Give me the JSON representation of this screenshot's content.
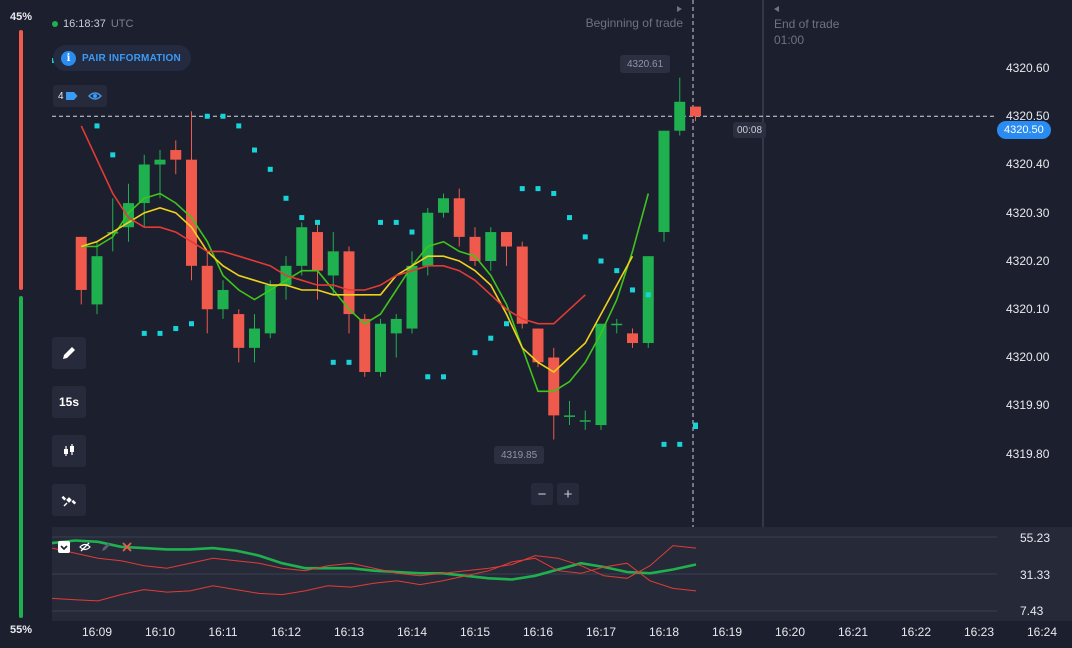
{
  "sentiment": {
    "top_percent": "45%",
    "bottom_percent": "55%",
    "top_color": "#ef5a4c",
    "bottom_color": "#1fb04f"
  },
  "clock": {
    "time": "16:18:37",
    "timezone": "UTC"
  },
  "pair_info": {
    "label": "PAIR INFORMATION",
    "icon": "info-icon"
  },
  "indicators": {
    "count": "4",
    "icon": "eye-icon"
  },
  "tools": [
    {
      "name": "draw-tool-button",
      "label": "",
      "icon": "pencil-icon"
    },
    {
      "name": "timeframe-button",
      "label": "15s",
      "icon": ""
    },
    {
      "name": "chart-type-button",
      "label": "",
      "icon": "candlestick-icon"
    },
    {
      "name": "indicators-button",
      "label": "",
      "icon": "satellite-icon"
    }
  ],
  "trade": {
    "beginning_label": "Beginning of trade",
    "end_label": "End of trade",
    "end_time": "01:00"
  },
  "price_tags": {
    "high": "4320.61",
    "low": "4319.85",
    "timer": "00:08",
    "current": "4320.50"
  },
  "y_axis": {
    "ticks": [
      "4320.60",
      "4320.50",
      "4320.40",
      "4320.30",
      "4320.20",
      "4320.10",
      "4320.00",
      "4319.90",
      "4319.80"
    ]
  },
  "oscillator_axis": {
    "ticks": [
      "55.23",
      "31.33",
      "7.43"
    ]
  },
  "x_axis": {
    "ticks": [
      "16:09",
      "16:10",
      "16:11",
      "16:12",
      "16:13",
      "16:14",
      "16:15",
      "16:16",
      "16:17",
      "16:18",
      "16:19",
      "16:20",
      "16:21",
      "16:22",
      "16:23",
      "16:24"
    ]
  },
  "zoom": {
    "minus": "−",
    "plus": "+"
  },
  "colors": {
    "background": "#1c1f2d",
    "up": "#1fb04f",
    "down": "#ef5a4c",
    "accent": "#2a8cf0",
    "ma_fast": "#3fc41d",
    "ma_mid": "#f0d21a",
    "ma_slow": "#e23b35",
    "parabolic_sar": "#17d4d6"
  },
  "chart_data": {
    "type": "candlestick",
    "y_range": [
      4319.74,
      4320.66
    ],
    "candles": [
      {
        "t": "16:08:45",
        "o": 4320.25,
        "c": 4320.14,
        "h": 4320.25,
        "l": 4320.11
      },
      {
        "t": "16:09:00",
        "o": 4320.11,
        "c": 4320.21,
        "h": 4320.24,
        "l": 4320.09
      },
      {
        "t": "16:09:15",
        "o": 4320.26,
        "c": 4320.26,
        "h": 4320.33,
        "l": 4320.22
      },
      {
        "t": "16:09:30",
        "o": 4320.27,
        "c": 4320.32,
        "h": 4320.36,
        "l": 4320.24
      },
      {
        "t": "16:09:45",
        "o": 4320.32,
        "c": 4320.4,
        "h": 4320.42,
        "l": 4320.27
      },
      {
        "t": "16:10:00",
        "o": 4320.4,
        "c": 4320.41,
        "h": 4320.43,
        "l": 4320.33
      },
      {
        "t": "16:10:15",
        "o": 4320.43,
        "c": 4320.41,
        "h": 4320.45,
        "l": 4320.38
      },
      {
        "t": "16:10:30",
        "o": 4320.41,
        "c": 4320.19,
        "h": 4320.51,
        "l": 4320.16
      },
      {
        "t": "16:10:45",
        "o": 4320.19,
        "c": 4320.1,
        "h": 4320.22,
        "l": 4320.05
      },
      {
        "t": "16:11:00",
        "o": 4320.1,
        "c": 4320.14,
        "h": 4320.16,
        "l": 4320.08
      },
      {
        "t": "16:11:15",
        "o": 4320.09,
        "c": 4320.02,
        "h": 4320.1,
        "l": 4319.99
      },
      {
        "t": "16:11:30",
        "o": 4320.02,
        "c": 4320.06,
        "h": 4320.09,
        "l": 4319.99
      },
      {
        "t": "16:11:45",
        "o": 4320.05,
        "c": 4320.15,
        "h": 4320.16,
        "l": 4320.04
      },
      {
        "t": "16:12:00",
        "o": 4320.15,
        "c": 4320.19,
        "h": 4320.21,
        "l": 4320.12
      },
      {
        "t": "16:12:15",
        "o": 4320.19,
        "c": 4320.27,
        "h": 4320.28,
        "l": 4320.17
      },
      {
        "t": "16:12:30",
        "o": 4320.26,
        "c": 4320.18,
        "h": 4320.28,
        "l": 4320.12
      },
      {
        "t": "16:12:45",
        "o": 4320.17,
        "c": 4320.22,
        "h": 4320.26,
        "l": 4320.13
      },
      {
        "t": "16:13:00",
        "o": 4320.22,
        "c": 4320.09,
        "h": 4320.23,
        "l": 4320.05
      },
      {
        "t": "16:13:15",
        "o": 4320.08,
        "c": 4319.97,
        "h": 4320.09,
        "l": 4319.96
      },
      {
        "t": "16:13:30",
        "o": 4319.97,
        "c": 4320.07,
        "h": 4320.08,
        "l": 4319.96
      },
      {
        "t": "16:13:45",
        "o": 4320.05,
        "c": 4320.08,
        "h": 4320.09,
        "l": 4320.0
      },
      {
        "t": "16:14:00",
        "o": 4320.06,
        "c": 4320.19,
        "h": 4320.22,
        "l": 4320.05
      },
      {
        "t": "16:14:15",
        "o": 4320.19,
        "c": 4320.3,
        "h": 4320.31,
        "l": 4320.17
      },
      {
        "t": "16:14:30",
        "o": 4320.3,
        "c": 4320.33,
        "h": 4320.34,
        "l": 4320.29
      },
      {
        "t": "16:14:45",
        "o": 4320.33,
        "c": 4320.25,
        "h": 4320.35,
        "l": 4320.23
      },
      {
        "t": "16:15:00",
        "o": 4320.25,
        "c": 4320.2,
        "h": 4320.27,
        "l": 4320.19
      },
      {
        "t": "16:15:15",
        "o": 4320.2,
        "c": 4320.26,
        "h": 4320.27,
        "l": 4320.18
      },
      {
        "t": "16:15:30",
        "o": 4320.26,
        "c": 4320.23,
        "h": 4320.26,
        "l": 4320.19
      },
      {
        "t": "16:15:45",
        "o": 4320.23,
        "c": 4320.07,
        "h": 4320.24,
        "l": 4320.06
      },
      {
        "t": "16:16:00",
        "o": 4320.06,
        "c": 4319.99,
        "h": 4320.06,
        "l": 4319.98
      },
      {
        "t": "16:16:15",
        "o": 4320.0,
        "c": 4319.88,
        "h": 4320.02,
        "l": 4319.83
      },
      {
        "t": "16:16:30",
        "o": 4319.88,
        "c": 4319.88,
        "h": 4319.91,
        "l": 4319.86
      },
      {
        "t": "16:16:45",
        "o": 4319.87,
        "c": 4319.87,
        "h": 4319.89,
        "l": 4319.85
      },
      {
        "t": "16:17:00",
        "o": 4319.86,
        "c": 4320.07,
        "h": 4320.07,
        "l": 4319.85
      },
      {
        "t": "16:17:15",
        "o": 4320.07,
        "c": 4320.07,
        "h": 4320.08,
        "l": 4320.05
      },
      {
        "t": "16:17:30",
        "o": 4320.05,
        "c": 4320.03,
        "h": 4320.06,
        "l": 4320.02
      },
      {
        "t": "16:17:45",
        "o": 4320.03,
        "c": 4320.21,
        "h": 4320.21,
        "l": 4320.02
      },
      {
        "t": "16:18:00",
        "o": 4320.26,
        "c": 4320.47,
        "h": 4320.47,
        "l": 4320.24
      },
      {
        "t": "16:18:15",
        "o": 4320.47,
        "c": 4320.53,
        "h": 4320.58,
        "l": 4320.46
      },
      {
        "t": "16:18:30",
        "o": 4320.52,
        "c": 4320.5,
        "h": 4320.52,
        "l": 4320.49
      }
    ],
    "series": [
      {
        "name": "",
        "color": "#3fc41d",
        "values": [
          4320.23,
          4320.23,
          4320.25,
          4320.3,
          4320.33,
          4320.34,
          4320.32,
          4320.29,
          4320.24,
          4320.17,
          4320.14,
          4320.12,
          4320.14,
          4320.16,
          4320.18,
          4320.18,
          4320.14,
          4320.1,
          4320.07,
          4320.09,
          4320.14,
          4320.19,
          4320.23,
          4320.24,
          4320.22,
          4320.21,
          4320.17,
          4320.11,
          4320.02,
          4319.93,
          4319.93,
          4319.95,
          4319.99,
          4320.05,
          4320.12,
          4320.22,
          4320.34
        ]
      },
      {
        "name": "",
        "color": "#f0d21a",
        "values": [
          4320.23,
          4320.24,
          4320.26,
          4320.28,
          4320.3,
          4320.31,
          4320.3,
          4320.27,
          4320.22,
          4320.19,
          4320.17,
          4320.16,
          4320.15,
          4320.15,
          4320.14,
          4320.14,
          4320.13,
          4320.13,
          4320.13,
          4320.13,
          4320.17,
          4320.19,
          4320.21,
          4320.21,
          4320.2,
          4320.18,
          4320.15,
          4320.09,
          4320.02,
          4319.99,
          4319.97,
          4320.0,
          4320.03,
          4320.09,
          4320.15,
          4320.21
        ]
      },
      {
        "name": "",
        "color": "#e23b35",
        "values": [
          4320.48,
          4320.41,
          4320.34,
          4320.29,
          4320.27,
          4320.27,
          4320.26,
          4320.24,
          4320.22,
          4320.22,
          4320.21,
          4320.2,
          4320.19,
          4320.17,
          4320.16,
          4320.15,
          4320.15,
          4320.14,
          4320.14,
          4320.15,
          4320.17,
          4320.18,
          4320.19,
          4320.19,
          4320.18,
          4320.16,
          4320.13,
          4320.1,
          4320.08,
          4320.07,
          4320.07,
          4320.1,
          4320.13
        ]
      }
    ],
    "parabolic_sar": [
      {
        "t": "16:09:00",
        "v": 4320.48
      },
      {
        "t": "16:09:15",
        "v": 4320.42
      },
      {
        "t": "16:09:45",
        "v": 4320.05
      },
      {
        "t": "16:10:00",
        "v": 4320.05
      },
      {
        "t": "16:10:15",
        "v": 4320.06
      },
      {
        "t": "16:10:30",
        "v": 4320.07
      },
      {
        "t": "16:10:45",
        "v": 4320.5
      },
      {
        "t": "16:11:00",
        "v": 4320.5
      },
      {
        "t": "16:11:15",
        "v": 4320.48
      },
      {
        "t": "16:11:30",
        "v": 4320.43
      },
      {
        "t": "16:11:45",
        "v": 4320.39
      },
      {
        "t": "16:12:00",
        "v": 4320.33
      },
      {
        "t": "16:12:15",
        "v": 4320.29
      },
      {
        "t": "16:12:30",
        "v": 4320.28
      },
      {
        "t": "16:12:45",
        "v": 4319.99
      },
      {
        "t": "16:13:00",
        "v": 4319.99
      },
      {
        "t": "16:13:30",
        "v": 4320.28
      },
      {
        "t": "16:13:45",
        "v": 4320.28
      },
      {
        "t": "16:14:00",
        "v": 4320.26
      },
      {
        "t": "16:14:15",
        "v": 4319.96
      },
      {
        "t": "16:14:30",
        "v": 4319.96
      },
      {
        "t": "16:15:00",
        "v": 4320.01
      },
      {
        "t": "16:15:15",
        "v": 4320.04
      },
      {
        "t": "16:15:30",
        "v": 4320.07
      },
      {
        "t": "16:15:45",
        "v": 4320.35
      },
      {
        "t": "16:16:00",
        "v": 4320.35
      },
      {
        "t": "16:16:15",
        "v": 4320.34
      },
      {
        "t": "16:16:30",
        "v": 4320.29
      },
      {
        "t": "16:16:45",
        "v": 4320.25
      },
      {
        "t": "16:17:00",
        "v": 4320.2
      },
      {
        "t": "16:17:15",
        "v": 4320.18
      },
      {
        "t": "16:17:30",
        "v": 4320.14
      },
      {
        "t": "16:17:45",
        "v": 4320.13
      },
      {
        "t": "16:18:00",
        "v": 4319.82
      },
      {
        "t": "16:18:15",
        "v": 4319.82
      },
      {
        "t": "16:18:30",
        "v": 4319.86
      }
    ],
    "oscillator": {
      "y_range": [
        0,
        62
      ],
      "series": [
        {
          "name": "",
          "color": "#1fb04f",
          "values": [
            54,
            56,
            55,
            51,
            50,
            49,
            49,
            50,
            48,
            44,
            38,
            34,
            34,
            34,
            32,
            31,
            30,
            30,
            28,
            26,
            25,
            28,
            33,
            38,
            35,
            31,
            30,
            33,
            37
          ]
        },
        {
          "name": "",
          "color": "#e23b35",
          "values": [
            50,
            46,
            42,
            40,
            36,
            34,
            38,
            42,
            40,
            38,
            34,
            32,
            36,
            38,
            34,
            30,
            28,
            30,
            32,
            34,
            37,
            44,
            42,
            36,
            28,
            26,
            36,
            52,
            50
          ]
        },
        {
          "name": "",
          "color": "#e23b35",
          "values": [
            10,
            9,
            8,
            13,
            17,
            15,
            16,
            20,
            17,
            14,
            13,
            16,
            20,
            19,
            22,
            24,
            21,
            24,
            28,
            32,
            39,
            42,
            32,
            30,
            35,
            38,
            24,
            18,
            16
          ]
        }
      ]
    }
  }
}
